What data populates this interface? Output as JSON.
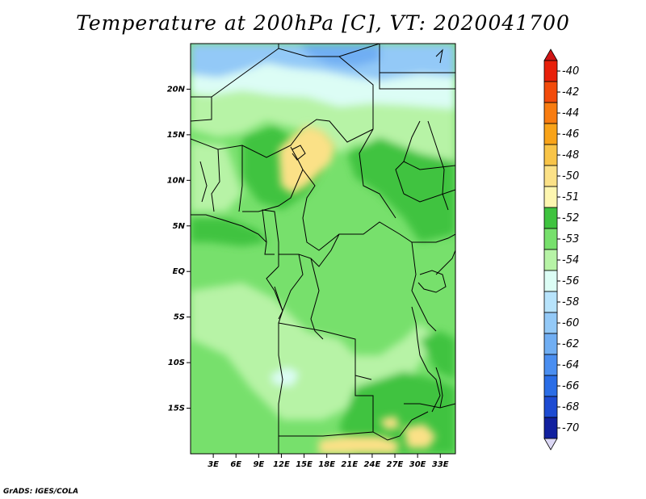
{
  "title": "Temperature at 200hPa [C], VT: 2020041700",
  "credit": "GrADS: IGES/COLA",
  "map": {
    "lon_range": [
      0,
      35
    ],
    "lat_range": [
      -20,
      25
    ],
    "lon_ticks": [
      {
        "value": 3,
        "label": "3E"
      },
      {
        "value": 6,
        "label": "6E"
      },
      {
        "value": 9,
        "label": "9E"
      },
      {
        "value": 12,
        "label": "12E"
      },
      {
        "value": 15,
        "label": "15E"
      },
      {
        "value": 18,
        "label": "18E"
      },
      {
        "value": 21,
        "label": "21E"
      },
      {
        "value": 24,
        "label": "24E"
      },
      {
        "value": 27,
        "label": "27E"
      },
      {
        "value": 30,
        "label": "30E"
      },
      {
        "value": 33,
        "label": "33E"
      }
    ],
    "lat_ticks": [
      {
        "value": 20,
        "label": "20N"
      },
      {
        "value": 15,
        "label": "15N"
      },
      {
        "value": 10,
        "label": "10N"
      },
      {
        "value": 5,
        "label": "5N"
      },
      {
        "value": 0,
        "label": "EQ"
      },
      {
        "value": -5,
        "label": "5S"
      },
      {
        "value": -10,
        "label": "10S"
      },
      {
        "value": -15,
        "label": "15S"
      }
    ]
  },
  "colorbar": {
    "levels": [
      {
        "label": "-40",
        "color": "#e8200a"
      },
      {
        "label": "-42",
        "color": "#f24b0b"
      },
      {
        "label": "-44",
        "color": "#f87c10"
      },
      {
        "label": "-46",
        "color": "#f8a319"
      },
      {
        "label": "-48",
        "color": "#f8c448"
      },
      {
        "label": "-50",
        "color": "#fbe187"
      },
      {
        "label": "-51",
        "color": "#fdf6b0"
      },
      {
        "label": "-52",
        "color": "#3fc33f"
      },
      {
        "label": "-53",
        "color": "#77e06c"
      },
      {
        "label": "-54",
        "color": "#b7f3a6"
      },
      {
        "label": "-56",
        "color": "#dcfdf5"
      },
      {
        "label": "-58",
        "color": "#b7e3fb"
      },
      {
        "label": "-60",
        "color": "#93c9f7"
      },
      {
        "label": "-62",
        "color": "#70aef3"
      },
      {
        "label": "-64",
        "color": "#4a8ef0"
      },
      {
        "label": "-66",
        "color": "#2a6de6"
      },
      {
        "label": "-68",
        "color": "#1d4bd2"
      },
      {
        "label": "-70",
        "color": "#12219f"
      }
    ],
    "top_triangle_color": "#d01515",
    "bottom_triangle_color": "#dcd8f5"
  }
}
